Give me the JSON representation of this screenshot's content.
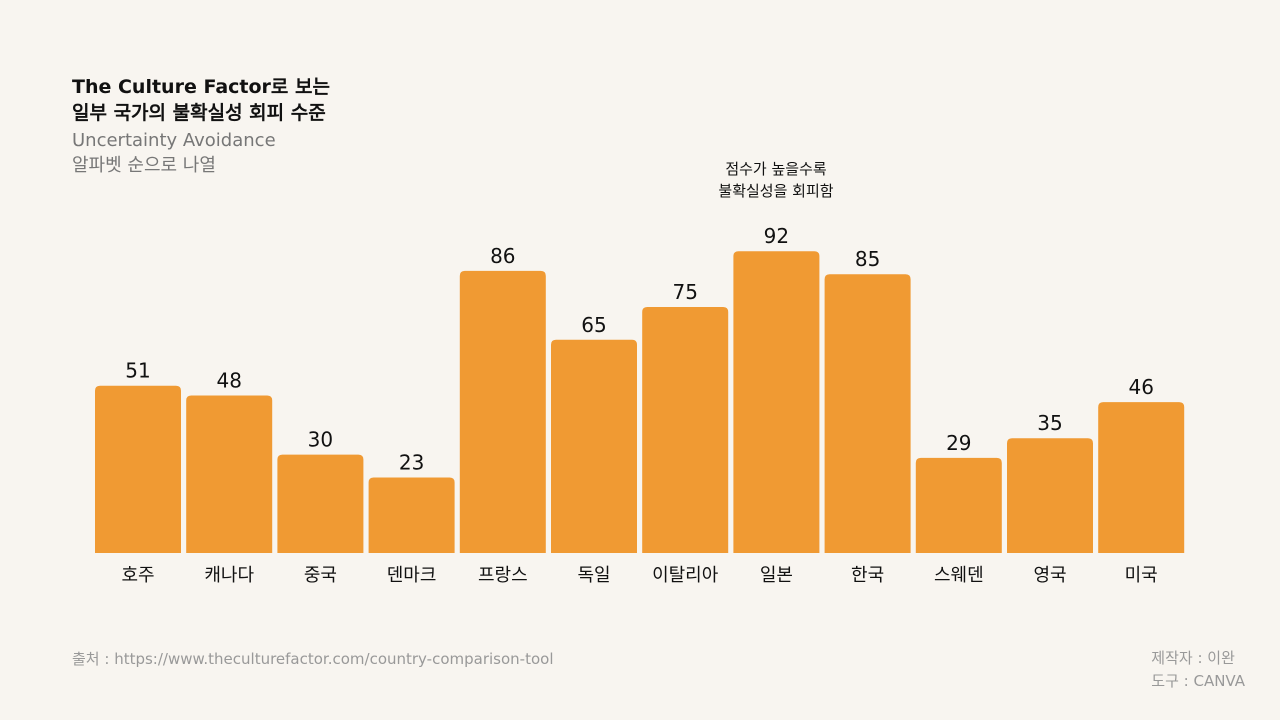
{
  "title": {
    "line1": "The Culture Factor로 보는",
    "line2": "일부 국가의 불확실성 회피 수준",
    "subtitle1": "Uncertainty Avoidance",
    "subtitle2": "알파벳 순으로 나열"
  },
  "chart_data": {
    "type": "bar",
    "categories": [
      "호주",
      "캐나다",
      "중국",
      "덴마크",
      "프랑스",
      "독일",
      "이탈리아",
      "일본",
      "한국",
      "스웨덴",
      "영국",
      "미국"
    ],
    "values": [
      51,
      48,
      30,
      23,
      86,
      65,
      75,
      92,
      85,
      29,
      35,
      46
    ],
    "ylim": [
      0,
      100
    ],
    "bar_color": "#f09a33",
    "annotation": [
      "점수가 높을수록",
      "불확실성을 회피함"
    ],
    "grid": false
  },
  "footer": {
    "source": "출처 : https://www.theculturefactor.com/country-comparison-tool",
    "author": "제작자 : 이완",
    "tool": "도구 : CANVA"
  }
}
